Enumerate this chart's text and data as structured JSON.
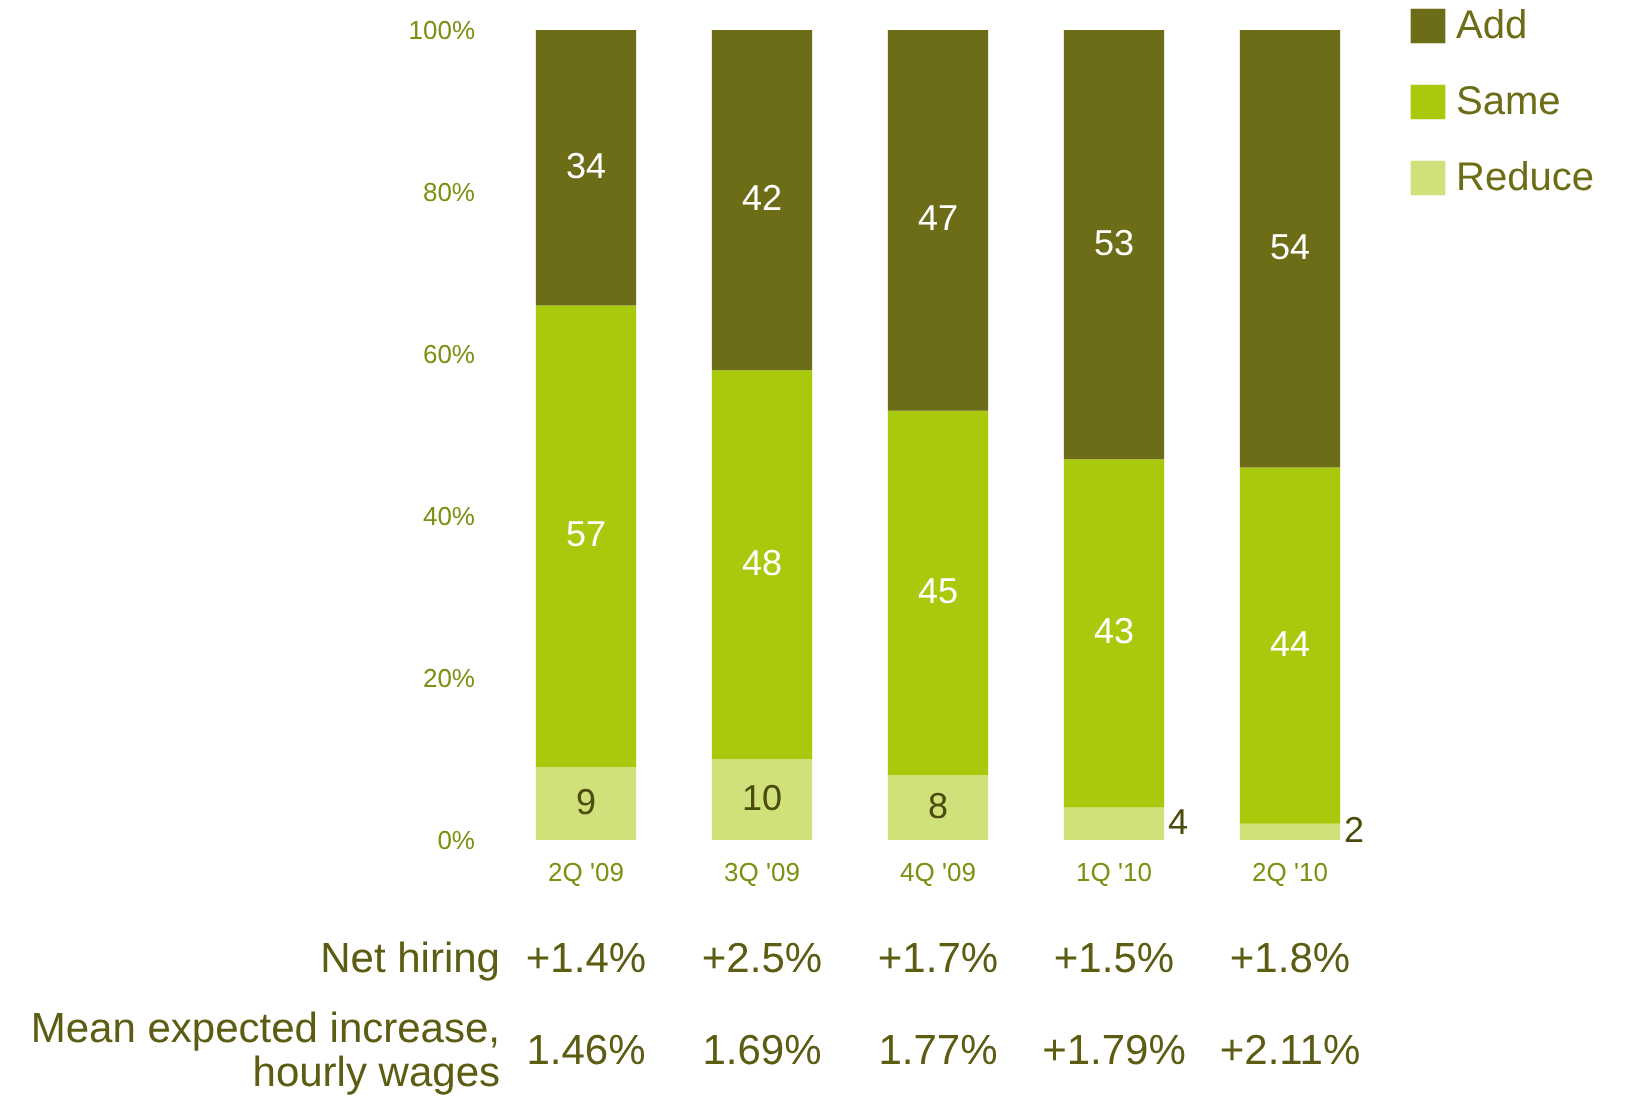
{
  "chart_data": {
    "type": "bar",
    "stacked": true,
    "categories": [
      "2Q '09",
      "3Q '09",
      "4Q '09",
      "1Q '10",
      "2Q '10"
    ],
    "series": [
      {
        "name": "Reduce",
        "color": "#d0e07a",
        "values": [
          9,
          10,
          8,
          4,
          2
        ]
      },
      {
        "name": "Same",
        "color": "#a9c90c",
        "values": [
          57,
          48,
          45,
          43,
          44
        ]
      },
      {
        "name": "Add",
        "color": "#6e6d17",
        "values": [
          34,
          42,
          47,
          53,
          54
        ]
      }
    ],
    "ylim": [
      0,
      100
    ],
    "yticks": [
      {
        "value": 0,
        "label": "0%"
      },
      {
        "value": 20,
        "label": "20%"
      },
      {
        "value": 40,
        "label": "40%"
      },
      {
        "value": 60,
        "label": "60%"
      },
      {
        "value": 80,
        "label": "80%"
      },
      {
        "value": 100,
        "label": "100%"
      }
    ],
    "data_labels": true,
    "legend": "top right",
    "grid": false,
    "annotations": [
      "Net hiring",
      "+1.4%",
      "+2.5%",
      "+1.7%",
      "+1.5%",
      "+1.8%",
      "Mean expected increase,\nhourly wages",
      "1.46%",
      "1.69%",
      "1.77%",
      "+1.79%",
      "+2.11%"
    ]
  }
}
